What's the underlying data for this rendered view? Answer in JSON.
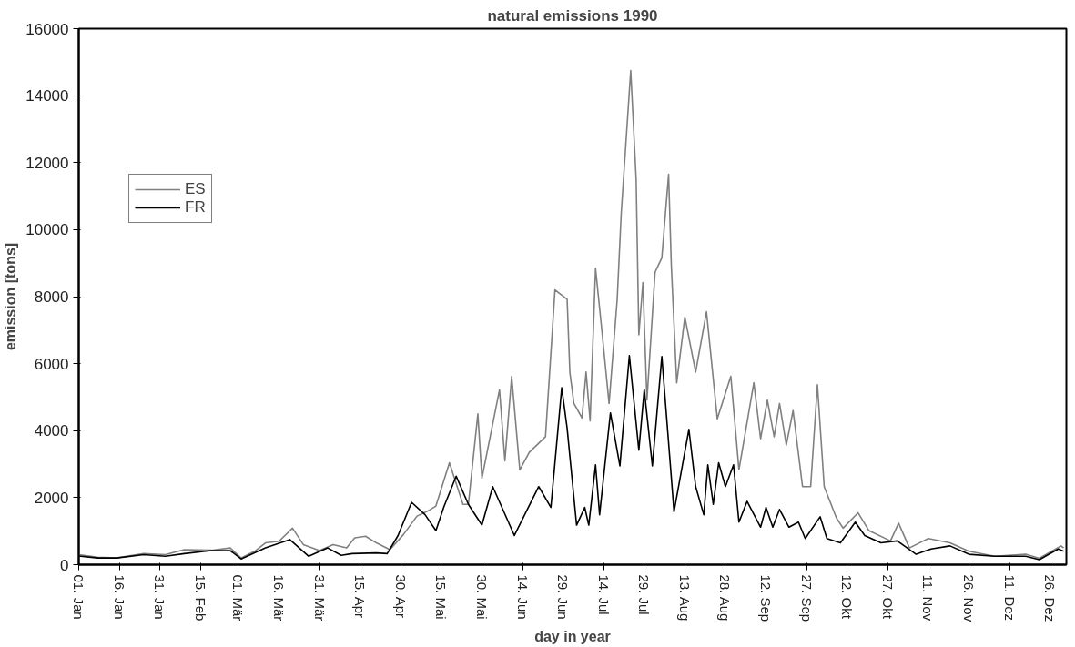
{
  "chart_data": {
    "type": "line",
    "title": "natural emissions 1990",
    "xlabel": "day in year",
    "ylabel": "emission [tons]",
    "xlim": [
      "1990-01-01",
      "1991-01-01"
    ],
    "ylim": [
      0,
      16000
    ],
    "xticks": [
      {
        "value": "1990-01-01",
        "label": "01. Jan"
      },
      {
        "value": "1990-01-16",
        "label": "16. Jan"
      },
      {
        "value": "1990-01-31",
        "label": "31. Jan"
      },
      {
        "value": "1990-02-15",
        "label": "15. Feb"
      },
      {
        "value": "1990-03-01",
        "label": "01. Mär"
      },
      {
        "value": "1990-03-16",
        "label": "16. Mär"
      },
      {
        "value": "1990-03-31",
        "label": "31. Mär"
      },
      {
        "value": "1990-04-15",
        "label": "15. Apr"
      },
      {
        "value": "1990-04-30",
        "label": "30. Apr"
      },
      {
        "value": "1990-05-15",
        "label": "15. Mai"
      },
      {
        "value": "1990-05-30",
        "label": "30. Mai"
      },
      {
        "value": "1990-06-14",
        "label": "14. Jun"
      },
      {
        "value": "1990-06-29",
        "label": "29. Jun"
      },
      {
        "value": "1990-07-14",
        "label": "14. Jul"
      },
      {
        "value": "1990-07-29",
        "label": "29. Jul"
      },
      {
        "value": "1990-08-13",
        "label": "13. Aug"
      },
      {
        "value": "1990-08-28",
        "label": "28. Aug"
      },
      {
        "value": "1990-09-12",
        "label": "12. Sep"
      },
      {
        "value": "1990-09-27",
        "label": "27. Sep"
      },
      {
        "value": "1990-10-12",
        "label": "12. Okt"
      },
      {
        "value": "1990-10-27",
        "label": "27. Okt"
      },
      {
        "value": "1990-11-11",
        "label": "11. Nov"
      },
      {
        "value": "1990-11-26",
        "label": "26. Nov"
      },
      {
        "value": "1990-12-11",
        "label": "11. Dez"
      },
      {
        "value": "1990-12-26",
        "label": "26. Dez"
      }
    ],
    "yticks": [
      0,
      2000,
      4000,
      6000,
      8000,
      10000,
      12000,
      14000,
      16000
    ],
    "grid": false,
    "legend": "top left",
    "marker": "none",
    "line_style": "solid",
    "series": [
      {
        "name": "ES",
        "color": "#808080",
        "x": [
          "1990-01-01",
          "1990-01-08",
          "1990-01-15",
          "1990-01-25",
          "1990-02-02",
          "1990-02-09",
          "1990-02-19",
          "1990-02-26",
          "1990-03-02",
          "1990-03-07",
          "1990-03-11",
          "1990-03-16",
          "1990-03-21",
          "1990-03-25",
          "1990-03-31",
          "1990-04-05",
          "1990-04-10",
          "1990-04-13",
          "1990-04-17",
          "1990-04-21",
          "1990-04-26",
          "1990-05-01",
          "1990-05-06",
          "1990-05-10",
          "1990-05-13",
          "1990-05-18",
          "1990-05-23",
          "1990-05-25",
          "1990-05-28T12:00",
          "1990-05-30",
          "1990-06-05T12:00",
          "1990-06-07T12:00",
          "1990-06-10",
          "1990-06-13",
          "1990-06-16T12:00",
          "1990-06-22T12:00",
          "1990-06-26",
          "1990-06-30T12:00",
          "1990-07-01T12:00",
          "1990-07-03",
          "1990-07-06",
          "1990-07-07T12:00",
          "1990-07-09",
          "1990-07-11",
          "1990-07-13T12:00",
          "1990-07-16",
          "1990-07-19",
          "1990-07-20T12:00",
          "1990-07-24",
          "1990-07-26",
          "1990-07-27",
          "1990-07-28T12:00",
          "1990-07-30",
          "1990-08-02",
          "1990-08-04T12:00",
          "1990-08-07",
          "1990-08-08",
          "1990-08-10",
          "1990-08-13",
          "1990-08-17",
          "1990-08-21",
          "1990-08-25",
          "1990-08-30",
          "1990-09-02",
          "1990-09-07T12:00",
          "1990-09-10",
          "1990-09-12T12:00",
          "1990-09-15",
          "1990-09-17",
          "1990-09-19T12:00",
          "1990-09-22",
          "1990-09-25T12:00",
          "1990-09-28T12:00",
          "1990-10-01",
          "1990-10-03T12:00",
          "1990-10-08",
          "1990-10-10T12:00",
          "1990-10-16",
          "1990-10-20",
          "1990-10-28",
          "1990-10-31",
          "1990-11-04",
          "1990-11-11",
          "1990-11-19",
          "1990-11-26",
          "1990-12-05T12:00",
          "1990-12-17",
          "1990-12-22",
          "1990-12-30",
          "1990-12-31"
        ],
        "values": [
          300,
          220,
          200,
          330,
          300,
          450,
          430,
          500,
          200,
          400,
          650,
          700,
          1090,
          600,
          420,
          600,
          500,
          800,
          850,
          650,
          450,
          900,
          1450,
          1600,
          1750,
          3040,
          1800,
          1800,
          4500,
          2580,
          5220,
          3100,
          5620,
          2830,
          3350,
          3820,
          8200,
          7920,
          5750,
          4810,
          4380,
          5750,
          4290,
          8850,
          6860,
          4810,
          7920,
          10500,
          14750,
          11520,
          6860,
          8420,
          4910,
          8730,
          9160,
          11650,
          8940,
          5430,
          7390,
          5750,
          7550,
          4350,
          5620,
          2830,
          5430,
          3760,
          4910,
          3820,
          4810,
          3570,
          4600,
          2330,
          2330,
          5370,
          2330,
          1400,
          1090,
          1550,
          1020,
          710,
          1240,
          500,
          780,
          650,
          400,
          250,
          310,
          190,
          560,
          500
        ]
      },
      {
        "name": "FR",
        "color": "#000000",
        "x": [
          "1990-01-01",
          "1990-01-08",
          "1990-01-15",
          "1990-01-25",
          "1990-02-02",
          "1990-02-09",
          "1990-02-19",
          "1990-02-26",
          "1990-03-02",
          "1990-03-11",
          "1990-03-20",
          "1990-03-27",
          "1990-04-03",
          "1990-04-08",
          "1990-04-12",
          "1990-04-21",
          "1990-04-25",
          "1990-04-29",
          "1990-05-04",
          "1990-05-09",
          "1990-05-13",
          "1990-05-16",
          "1990-05-20T12:00",
          "1990-05-25",
          "1990-05-30",
          "1990-06-03",
          "1990-06-11",
          "1990-06-20",
          "1990-06-24T12:00",
          "1990-06-28T12:00",
          "1990-06-30T12:00",
          "1990-07-04",
          "1990-07-07",
          "1990-07-08T12:00",
          "1990-07-11",
          "1990-07-12T12:00",
          "1990-07-16T12:00",
          "1990-07-20",
          "1990-07-23T12:00",
          "1990-07-27",
          "1990-07-29",
          "1990-08-01",
          "1990-08-04T12:00",
          "1990-08-09",
          "1990-08-14T12:00",
          "1990-08-17",
          "1990-08-20",
          "1990-08-21T12:00",
          "1990-08-23T12:00",
          "1990-08-25T12:00",
          "1990-08-28",
          "1990-08-31",
          "1990-09-02",
          "1990-09-05",
          "1990-09-10",
          "1990-09-12",
          "1990-09-14T12:00",
          "1990-09-17",
          "1990-09-20T12:00",
          "1990-09-24",
          "1990-09-26T12:00",
          "1990-10-02",
          "1990-10-04T12:00",
          "1990-10-09T12:00",
          "1990-10-15",
          "1990-10-18T12:00",
          "1990-10-24T12:00",
          "1990-10-30T12:00",
          "1990-11-06T12:00",
          "1990-11-12",
          "1990-11-19",
          "1990-11-26",
          "1990-12-05T12:00",
          "1990-12-17",
          "1990-12-22",
          "1990-12-29",
          "1990-12-31"
        ],
        "values": [
          260,
          200,
          200,
          300,
          250,
          330,
          420,
          420,
          170,
          500,
          750,
          250,
          500,
          280,
          330,
          350,
          330,
          870,
          1860,
          1490,
          1020,
          1740,
          2640,
          1800,
          1180,
          2330,
          870,
          2330,
          1710,
          5280,
          4070,
          1180,
          1710,
          1180,
          2980,
          1490,
          4530,
          2950,
          6240,
          3420,
          5220,
          2950,
          6210,
          1580,
          4040,
          2330,
          1490,
          2980,
          1800,
          3040,
          2330,
          2980,
          1270,
          1890,
          1120,
          1710,
          1120,
          1650,
          1120,
          1270,
          780,
          1430,
          780,
          650,
          1270,
          870,
          650,
          710,
          310,
          470,
          560,
          310,
          250,
          250,
          150,
          470,
          400
        ]
      }
    ]
  }
}
